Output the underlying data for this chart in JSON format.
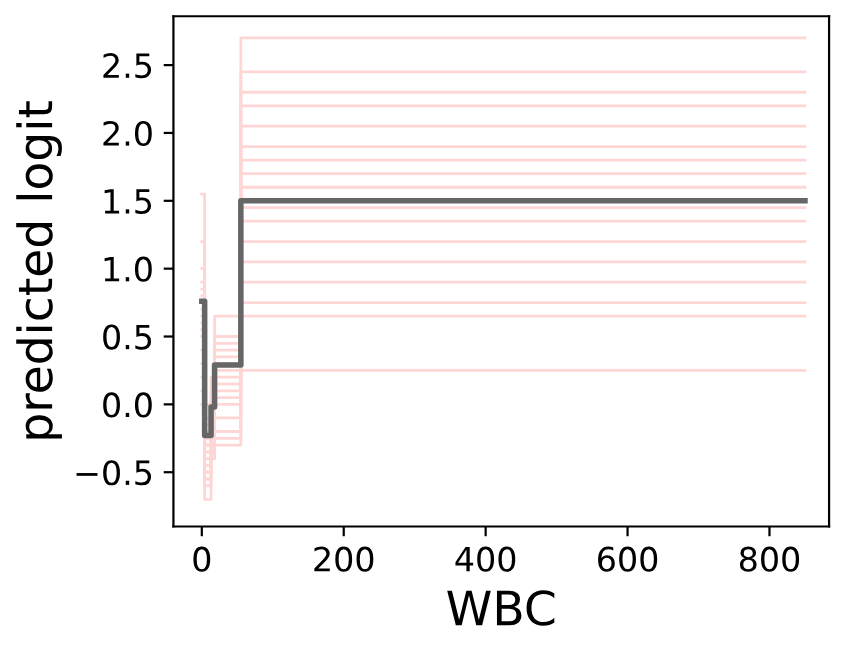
{
  "chart_data": {
    "type": "step",
    "xlabel": "WBC",
    "ylabel": "predicted logit",
    "x": [
      0,
      4,
      13,
      18,
      55,
      850
    ],
    "xlim": [
      -40,
      884
    ],
    "xticks": [
      0,
      200,
      400,
      600,
      800
    ],
    "ylim": [
      -0.9,
      2.86
    ],
    "yticks": [
      {
        "value": -0.5,
        "label": "−0.5"
      },
      {
        "value": 0,
        "label": "0.0"
      },
      0.5,
      {
        "value": 1,
        "label": "1.0"
      },
      1.5,
      {
        "value": 2,
        "label": "2.0"
      },
      2.5
    ],
    "grid": false,
    "legend": false,
    "series": [
      {
        "color": "#ffd6d6",
        "values": [
          1.55,
          -0.1,
          0.1,
          0.5,
          2.7,
          2.7
        ]
      },
      {
        "color": "#ffd6d6",
        "values": [
          1.2,
          0.0,
          0.2,
          0.65,
          2.45,
          2.45
        ]
      },
      {
        "color": "#ffd6d6",
        "values": [
          1.0,
          -0.2,
          0.0,
          0.45,
          2.3,
          2.3
        ]
      },
      {
        "color": "#ffd6d6",
        "values": [
          0.9,
          -0.3,
          -0.1,
          0.4,
          2.2,
          2.2
        ]
      },
      {
        "color": "#ffd6d6",
        "values": [
          0.85,
          -0.15,
          0.05,
          0.35,
          2.05,
          2.05
        ]
      },
      {
        "color": "#ffd6d6",
        "values": [
          0.8,
          -0.25,
          -0.05,
          0.3,
          1.9,
          1.9
        ]
      },
      {
        "color": "#ffd6d6",
        "values": [
          0.75,
          -0.3,
          -0.1,
          0.3,
          1.8,
          1.8
        ]
      },
      {
        "color": "#ffd6d6",
        "values": [
          0.7,
          -0.2,
          0.0,
          0.25,
          1.7,
          1.7
        ]
      },
      {
        "color": "#ffd6d6",
        "values": [
          0.65,
          -0.35,
          -0.15,
          0.2,
          1.6,
          1.6
        ]
      },
      {
        "color": "#ffd6d6",
        "values": [
          0.6,
          -0.4,
          -0.2,
          0.15,
          1.45,
          1.45
        ]
      },
      {
        "color": "#ffd6d6",
        "values": [
          0.55,
          -0.3,
          -0.1,
          0.1,
          1.35,
          1.35
        ]
      },
      {
        "color": "#ffd6d6",
        "values": [
          0.5,
          -0.45,
          -0.25,
          0.05,
          1.2,
          1.2
        ]
      },
      {
        "color": "#ffd6d6",
        "values": [
          0.4,
          -0.5,
          -0.3,
          0.0,
          1.05,
          1.05
        ]
      },
      {
        "color": "#ffd6d6",
        "values": [
          0.3,
          -0.55,
          -0.2,
          -0.1,
          0.9,
          0.9
        ]
      },
      {
        "color": "#ffd6d6",
        "values": [
          0.2,
          -0.6,
          -0.3,
          -0.2,
          0.75,
          0.75
        ]
      },
      {
        "color": "#ffd6d6",
        "values": [
          0.1,
          -0.7,
          -0.4,
          -0.3,
          0.65,
          0.65
        ]
      },
      {
        "color": "#ffd6d6",
        "values": [
          0.0,
          -0.5,
          -0.35,
          -0.25,
          0.25,
          0.25
        ]
      },
      {
        "color": "#666666",
        "values": [
          0.76,
          -0.23,
          -0.02,
          0.29,
          1.5,
          1.5
        ]
      }
    ]
  }
}
